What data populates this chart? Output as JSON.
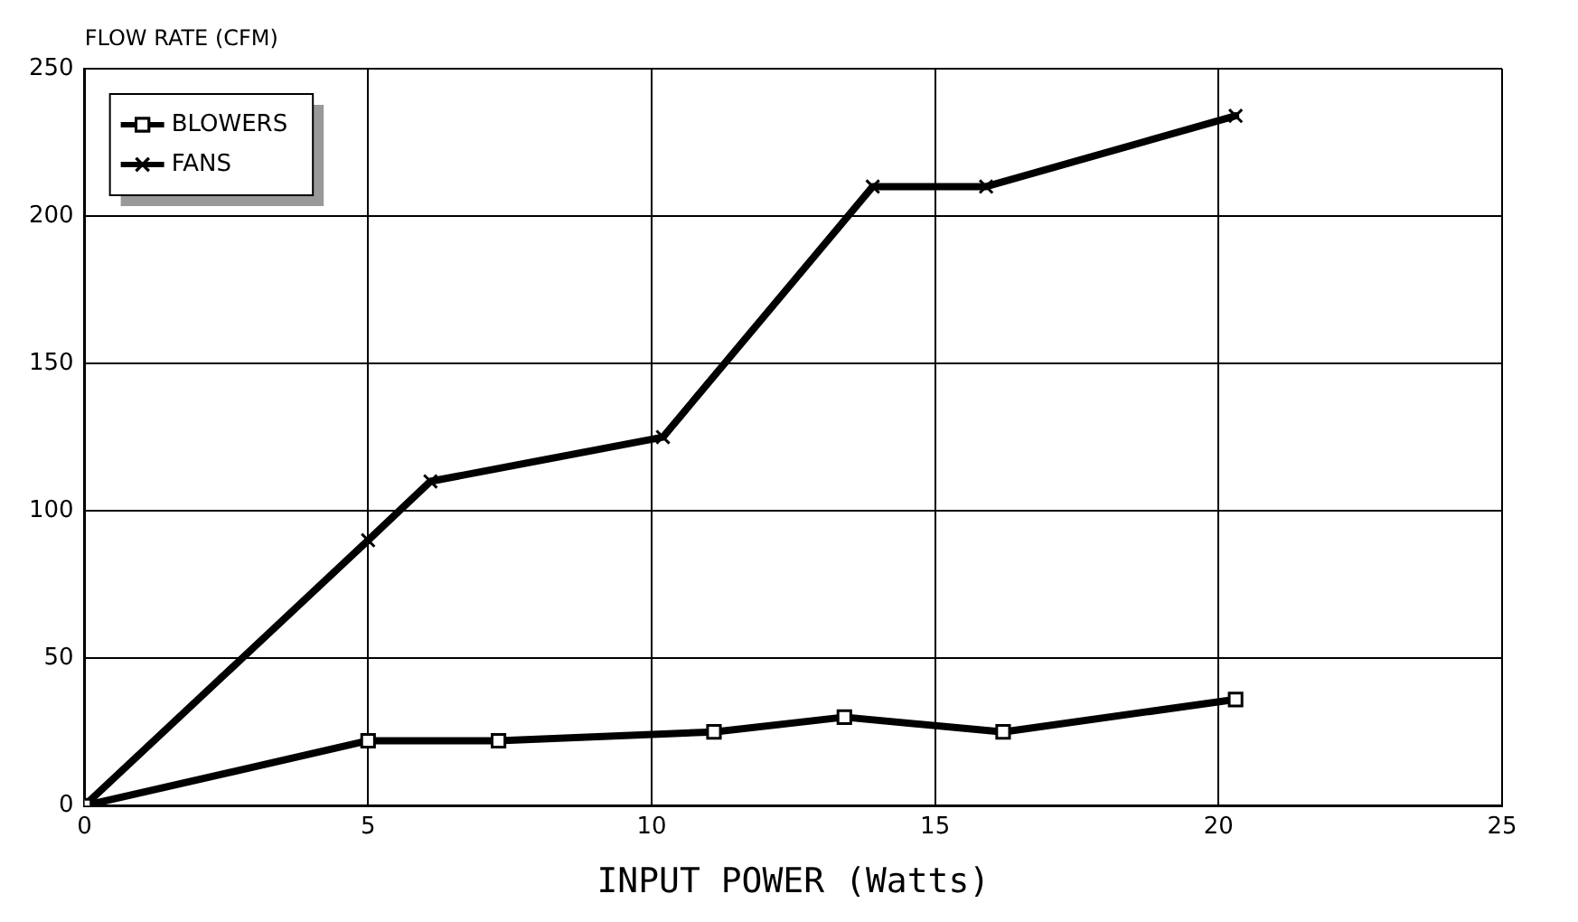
{
  "chart_data": {
    "type": "line",
    "ylabel": "FLOW RATE (CFM)",
    "xlabel": "INPUT POWER (Watts)",
    "xlim": [
      0,
      25
    ],
    "xticks": [
      0,
      5,
      10,
      15,
      20,
      25
    ],
    "ylim": [
      0,
      250
    ],
    "yticks": [
      0,
      50,
      100,
      150,
      200,
      250
    ],
    "grid": true,
    "legend": "top left",
    "line_style": "solid",
    "series": [
      {
        "name": "BLOWERS",
        "color": "#000000",
        "marker": "square",
        "x": [
          0,
          5,
          7.3,
          11.1,
          13.4,
          16.2,
          20.3
        ],
        "values": [
          0,
          22,
          22,
          25,
          30,
          25,
          36
        ]
      },
      {
        "name": "FANS",
        "color": "#000000",
        "marker": "cross",
        "x": [
          0,
          5,
          6.1,
          10.2,
          13.9,
          15.9,
          20.3
        ],
        "values": [
          0,
          90,
          110,
          125,
          210,
          210,
          234
        ]
      }
    ]
  }
}
